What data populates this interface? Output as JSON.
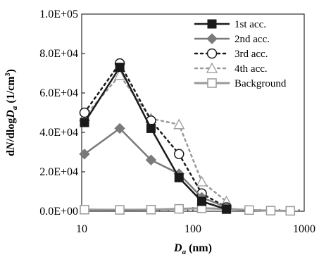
{
  "chart_data": {
    "type": "line",
    "title": "",
    "xlabel_main": "D",
    "xlabel_sub": "a",
    "xlabel_unit": " (nm)",
    "ylabel_pre": "d",
    "ylabel_N": "N",
    "ylabel_mid": "/dlog",
    "ylabel_D": "D",
    "ylabel_sub": "a",
    "ylabel_unit": " (1/cm",
    "ylabel_sup": "3",
    "ylabel_close": ")",
    "x_scale": "log",
    "xlim": [
      10,
      1000
    ],
    "ylim": [
      0,
      100000
    ],
    "x_ticks": [
      10,
      100,
      1000
    ],
    "x_tick_labels": [
      "10",
      "100",
      "1000"
    ],
    "y_ticks": [
      0,
      20000,
      40000,
      60000,
      80000,
      100000
    ],
    "y_tick_labels": [
      "0.0E+00",
      "2.0E+04",
      "4.0E+04",
      "6.0E+04",
      "8.0E+04",
      "1.0E+05"
    ],
    "grid": false,
    "legend_position": "top-right",
    "series": [
      {
        "name": "1st acc.",
        "color": "#1a1a1a",
        "line": "solid",
        "marker": "filled-square",
        "x": [
          10.6,
          22,
          42,
          75,
          120,
          200
        ],
        "y": [
          45000,
          73000,
          42000,
          17000,
          5000,
          1000
        ]
      },
      {
        "name": "2nd acc.",
        "color": "#7a7a7a",
        "line": "solid",
        "marker": "filled-diamond",
        "x": [
          10.6,
          22,
          42,
          75,
          120,
          200
        ],
        "y": [
          29000,
          42000,
          26000,
          19000,
          7000,
          2000
        ]
      },
      {
        "name": "3rd acc.",
        "color": "#1a1a1a",
        "line": "dotted",
        "marker": "open-circle",
        "x": [
          10.6,
          22,
          42,
          75,
          120,
          200
        ],
        "y": [
          50000,
          75000,
          46000,
          29000,
          9000,
          2000
        ]
      },
      {
        "name": "4th acc.",
        "color": "#9a9a9a",
        "line": "dotted",
        "marker": "open-triangle",
        "x": [
          10.6,
          22,
          42,
          75,
          120,
          200
        ],
        "y": [
          48000,
          69000,
          47000,
          44000,
          15000,
          5000
        ]
      },
      {
        "name": "Background",
        "color": "#9a9a9a",
        "line": "solid",
        "marker": "open-square",
        "x": [
          10.6,
          22,
          42,
          75,
          120,
          200,
          320,
          500,
          750
        ],
        "y": [
          800,
          700,
          800,
          1200,
          1500,
          1200,
          600,
          300,
          200
        ]
      }
    ]
  }
}
